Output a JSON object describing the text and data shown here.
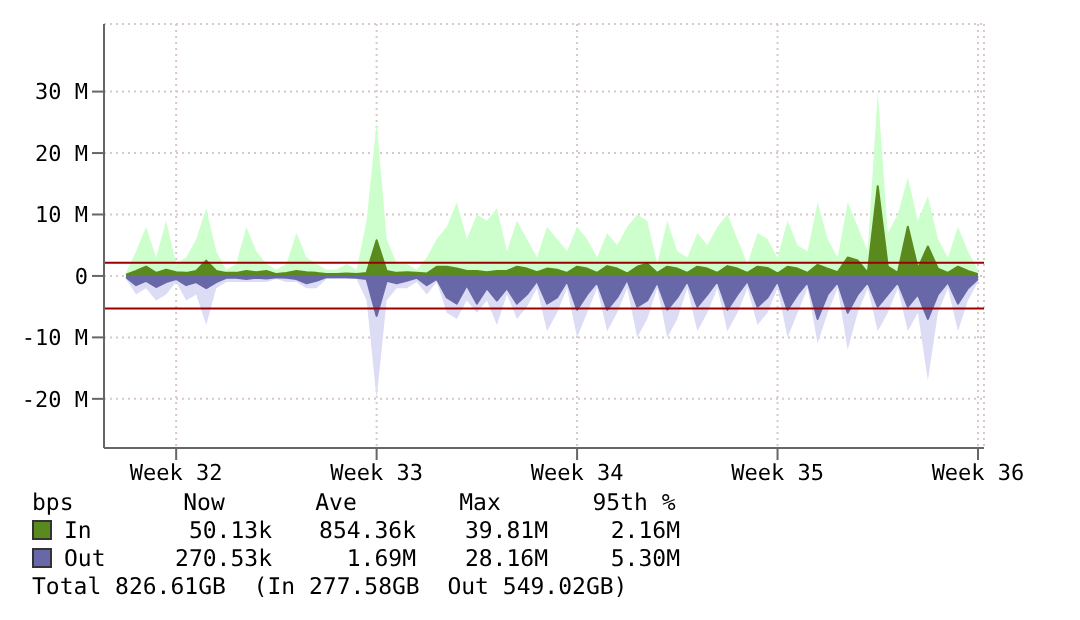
{
  "chart_data": {
    "type": "area",
    "categories": [
      null,
      null,
      null,
      null,
      null,
      "Week 32",
      null,
      null,
      null,
      null,
      null,
      null,
      null,
      null,
      null,
      null,
      null,
      null,
      null,
      null,
      null,
      null,
      null,
      null,
      null,
      "Week 33",
      null,
      null,
      null,
      null,
      null,
      null,
      null,
      null,
      null,
      null,
      null,
      null,
      null,
      null,
      null,
      null,
      null,
      null,
      null,
      "Week 34",
      null,
      null,
      null,
      null,
      null,
      null,
      null,
      null,
      null,
      null,
      null,
      null,
      null,
      null,
      null,
      null,
      null,
      null,
      null,
      "Week 35",
      null,
      null,
      null,
      null,
      null,
      null,
      null,
      null,
      null,
      null,
      null,
      null,
      null,
      null,
      null,
      null,
      null,
      null,
      null,
      "Week 36"
    ],
    "series": [
      {
        "color": "#ccffcc",
        "values": [
          0.5,
          4,
          8,
          3,
          9,
          2,
          3,
          6,
          11,
          4,
          1,
          2,
          8,
          4,
          2,
          1,
          2,
          7,
          3,
          2,
          1,
          1,
          2,
          1,
          9,
          25,
          6,
          2,
          2,
          1,
          3,
          6,
          8,
          12,
          6,
          10,
          9,
          11,
          4,
          9,
          6,
          3,
          8,
          6,
          4,
          8,
          6,
          3,
          7,
          5,
          8,
          10,
          9,
          2,
          9,
          4,
          3,
          7,
          5,
          8,
          10,
          6,
          2,
          7,
          6,
          3,
          9,
          5,
          4,
          12,
          6,
          3,
          12,
          8,
          4,
          30,
          7,
          10,
          16,
          9,
          13,
          6,
          3,
          8,
          4,
          1
        ]
      },
      {
        "color": "#dcdcf5",
        "values": [
          -0.5,
          -3,
          -2,
          -4,
          -3,
          -1,
          -4,
          -3,
          -8,
          -2,
          -1,
          -1,
          -1,
          -1,
          -1,
          -0.5,
          -1,
          -1,
          -2,
          -2,
          -0.5,
          -0.5,
          -0.5,
          -0.5,
          -4,
          -20,
          -4,
          -2,
          -2,
          -1,
          -3,
          -1,
          -6,
          -7,
          -4,
          -6,
          -4,
          -8,
          -3,
          -7,
          -5,
          -2,
          -9,
          -6,
          -2,
          -10,
          -6,
          -2,
          -9,
          -6,
          -2,
          -10,
          -7,
          -2,
          -10,
          -7,
          -2,
          -9,
          -6,
          -2,
          -9,
          -6,
          -2,
          -8,
          -6,
          -2,
          -10,
          -6,
          -2,
          -11,
          -6,
          -2,
          -12,
          -6,
          -2,
          -9,
          -6,
          -2,
          -9,
          -6,
          -17,
          -6,
          -2,
          -9,
          -4,
          -1
        ]
      },
      {
        "name": "In",
        "color": "#5a8a1e",
        "values": [
          0.2,
          0.8,
          1.5,
          0.5,
          1,
          0.6,
          0.5,
          0.8,
          2.5,
          0.8,
          0.5,
          0.5,
          0.8,
          0.6,
          0.8,
          0.3,
          0.5,
          0.8,
          0.6,
          0.5,
          0.3,
          0.3,
          0.4,
          0.3,
          0.5,
          5.8,
          0.8,
          0.5,
          0.6,
          0.5,
          0.4,
          1.5,
          1.5,
          1.2,
          0.8,
          0.8,
          0.6,
          0.8,
          0.8,
          1.5,
          1.2,
          0.6,
          1.2,
          1,
          0.5,
          1.5,
          1.2,
          0.5,
          1.6,
          1.2,
          0.4,
          1.5,
          2,
          0.5,
          1.5,
          1.2,
          0.5,
          1.5,
          1.2,
          0.5,
          1.6,
          1.2,
          0.5,
          1.5,
          1.3,
          0.4,
          1.5,
          1.2,
          0.5,
          1.8,
          1.2,
          0.6,
          3,
          2.5,
          0.5,
          14.6,
          1.5,
          0.5,
          8,
          1.2,
          4.8,
          1.2,
          0.5,
          1.5,
          0.8,
          0.3
        ]
      },
      {
        "name": "Out",
        "color": "#6868a8",
        "values": [
          -0.2,
          -1.5,
          -0.8,
          -1.8,
          -1,
          -0.5,
          -1.5,
          -1,
          -2,
          -1,
          -0.3,
          -0.3,
          -0.5,
          -0.3,
          -0.4,
          -0.2,
          -0.3,
          -0.5,
          -1.2,
          -0.8,
          -0.2,
          -0.2,
          -0.2,
          -0.3,
          -0.5,
          -6.5,
          -0.8,
          -1.2,
          -0.8,
          -0.3,
          -1.5,
          -0.5,
          -3.5,
          -4.5,
          -1.5,
          -4.5,
          -2,
          -4,
          -2,
          -4.5,
          -3,
          -0.8,
          -4.5,
          -3.5,
          -0.8,
          -5.5,
          -3,
          -1,
          -5.5,
          -3.5,
          -0.6,
          -5,
          -4,
          -1,
          -5.5,
          -3.5,
          -0.8,
          -5,
          -3,
          -0.8,
          -5.5,
          -3,
          -0.8,
          -5,
          -3.5,
          -0.8,
          -5.5,
          -3,
          -1,
          -7,
          -3,
          -1,
          -6,
          -3,
          -1,
          -5,
          -3,
          -1,
          -5,
          -3,
          -7,
          -3,
          -1,
          -4.5,
          -2,
          -0.5
        ]
      }
    ],
    "ylim": [
      -28,
      41
    ],
    "yticks": [
      {
        "value": -20,
        "label": "-20 M"
      },
      {
        "value": -10,
        "label": "-10 M"
      },
      0,
      {
        "value": 10,
        "label": "10 M"
      },
      {
        "value": 20,
        "label": "20 M"
      },
      {
        "value": 30,
        "label": "30 M"
      }
    ],
    "ref_lines": [
      {
        "axis": "y",
        "value": 2.16,
        "color": "#990000"
      },
      {
        "axis": "y",
        "value": -5.3,
        "color": "#990000"
      }
    ],
    "grid": true,
    "legend": "bottom",
    "legend_title": "bps",
    "annotations": [
      "Now",
      "Ave",
      "Max",
      "95th %",
      "50.13k",
      "854.36k",
      "39.81M",
      "2.16M",
      "270.53k",
      "1.69M",
      "28.16M",
      "5.30M",
      "Total 826.61GB  (In 277.58GB  Out 549.02GB)"
    ]
  }
}
